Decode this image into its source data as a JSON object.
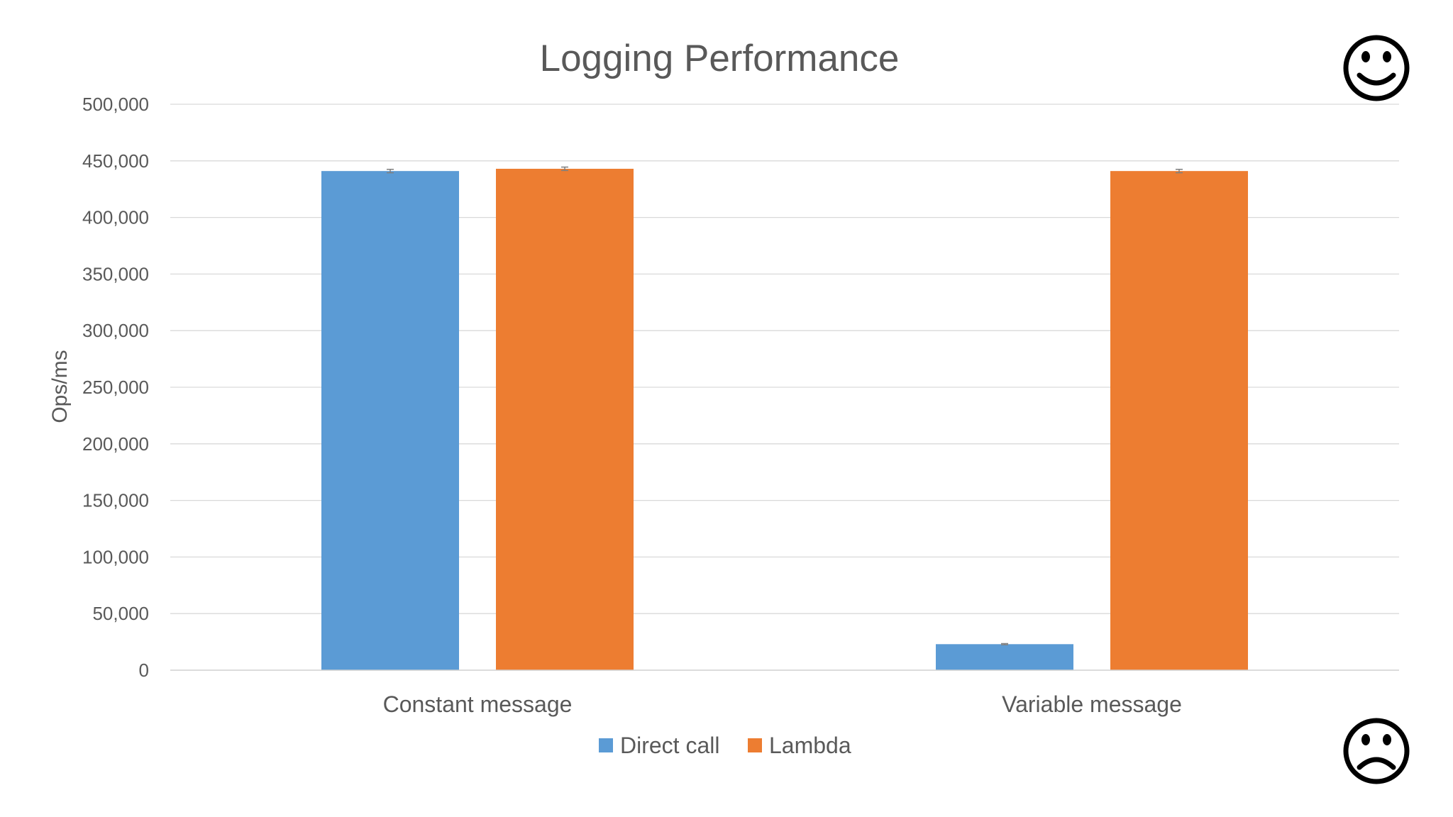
{
  "chart_data": {
    "type": "bar",
    "title": "Logging Performance",
    "xlabel": "",
    "ylabel": "Ops/ms",
    "ylim": [
      0,
      500000
    ],
    "ytick_values": [
      0,
      50000,
      100000,
      150000,
      200000,
      250000,
      300000,
      350000,
      400000,
      450000,
      500000
    ],
    "ytick_labels": [
      "0",
      "50,000",
      "100,000",
      "150,000",
      "200,000",
      "250,000",
      "300,000",
      "350,000",
      "400,000",
      "450,000",
      "500,000"
    ],
    "categories": [
      "Constant message",
      "Variable message"
    ],
    "series": [
      {
        "name": "Direct call",
        "color": "#5b9bd5",
        "values": [
          441000,
          23000
        ],
        "error": [
          1500,
          500
        ]
      },
      {
        "name": "Lambda",
        "color": "#ed7d31",
        "values": [
          443000,
          441000
        ],
        "error": [
          1500,
          1500
        ]
      }
    ],
    "grid": true,
    "legend_position": "bottom",
    "error_bars": true
  },
  "decorations": {
    "top_icon": "smiley-face-icon",
    "bottom_icon": "frowning-face-icon"
  }
}
